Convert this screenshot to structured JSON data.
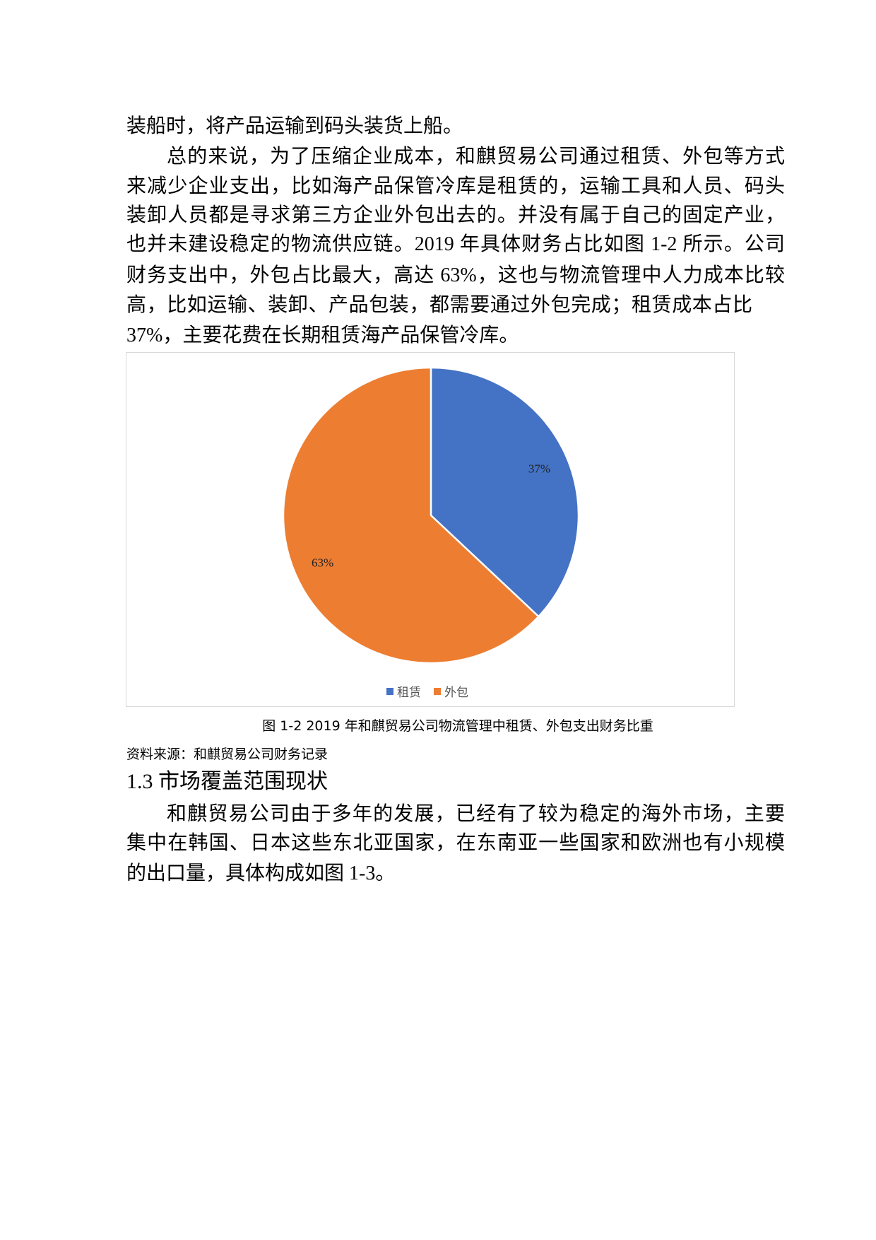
{
  "paragraph1": {
    "lines": [
      "装船时，将产品运输到码头装货上船。",
      "总的来说，为了压缩企业成本，和麒贸易公司通过租赁、外包等方式",
      "来减少企业支出，比如海产品保管冷库是租赁的，运输工具和人员、码头",
      "装卸人员都是寻求第三方企业外包出去的。并没有属于自己的固定产业，",
      "也并未建设稳定的物流供应链。2019 年具体财务占比如图 1-2 所示。公司",
      "财务支出中，外包占比最大，高达 63%，这也与物流管理中人力成本比较",
      "高，比如运输、装卸、产品包装，都需要通过外包完成；租赁成本占比",
      "37%，主要花费在长期租赁海产品保管冷库。"
    ]
  },
  "chart_data": {
    "type": "pie",
    "categories": [
      "租赁",
      "外包"
    ],
    "values": [
      37,
      63
    ],
    "data_labels": [
      "37%",
      "63%"
    ],
    "colors": [
      "#4472C4",
      "#ED7D31"
    ],
    "legend_position": "bottom"
  },
  "figure": {
    "caption": "图 1-2  2019 年和麒贸易公司物流管理中租赁、外包支出财务比重",
    "source": "资料来源：和麒贸易公司财务记录"
  },
  "section": {
    "heading": "1.3 市场覆盖范围现状",
    "lines": [
      "和麒贸易公司由于多年的发展，已经有了较为稳定的海外市场，主要",
      "集中在韩国、日本这些东北亚国家，在东南亚一些国家和欧洲也有小规模",
      "的出口量，具体构成如图 1-3。"
    ]
  }
}
